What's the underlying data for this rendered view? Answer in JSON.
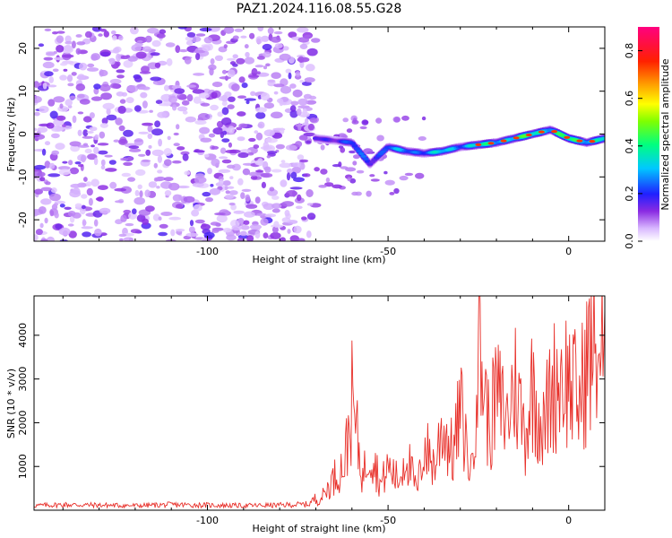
{
  "figure_title": "PAZ1.2024.116.08.55.G28",
  "chart_data": [
    {
      "type": "heatmap",
      "xlabel": "Height of straight line (km)",
      "ylabel": "Frequency (Hz)",
      "xlim": [
        -148,
        10
      ],
      "ylim": [
        -25,
        25
      ],
      "xticks": [
        -100,
        -50,
        0
      ],
      "yticks": [
        -20,
        -10,
        0,
        10,
        20
      ],
      "colorbar": {
        "label": "Normalized spectral amplitude",
        "ticks": [
          0.0,
          0.2,
          0.4,
          0.6,
          0.8
        ],
        "range": [
          0.0,
          0.9
        ],
        "colormap": "rainbow (white-violet-blue-cyan-green-yellow-orange-red-magenta)"
      },
      "ridge": {
        "description": "Dominant frequency track",
        "x": [
          -70,
          -65,
          -60,
          -55,
          -50,
          -45,
          -40,
          -35,
          -30,
          -25,
          -20,
          -15,
          -10,
          -5,
          0,
          5,
          10
        ],
        "y": [
          -1,
          -1.5,
          -2,
          -7,
          -3,
          -4,
          -4.5,
          -4,
          -3,
          -2.5,
          -2,
          -1,
          0,
          1,
          -1,
          -2,
          -1
        ]
      },
      "noise_region_x": [
        -148,
        -70
      ]
    },
    {
      "type": "line",
      "xlabel": "Height of straight line (km)",
      "ylabel": "SNR (10 * v/v)",
      "xlim": [
        -148,
        10
      ],
      "ylim": [
        0,
        4900
      ],
      "xticks": [
        -100,
        -50,
        0
      ],
      "yticks": [
        1000,
        2000,
        3000,
        4000
      ],
      "series": [
        {
          "color": "#e8302a",
          "x": [
            -148,
            -140,
            -130,
            -120,
            -110,
            -100,
            -90,
            -80,
            -72,
            -68,
            -65,
            -62,
            -60,
            -57,
            -55,
            -52,
            -50,
            -47,
            -45,
            -42,
            -40,
            -37,
            -35,
            -32,
            -30,
            -27,
            -25,
            -22,
            -20,
            -17,
            -15,
            -12,
            -10,
            -7,
            -5,
            -2,
            0,
            3,
            5,
            8,
            10
          ],
          "y": [
            100,
            120,
            110,
            100,
            120,
            110,
            100,
            110,
            130,
            400,
            900,
            1300,
            3000,
            900,
            1800,
            700,
            1200,
            800,
            1600,
            500,
            1800,
            1200,
            2400,
            1500,
            2800,
            1000,
            4800,
            2200,
            3200,
            2500,
            3600,
            2100,
            3500,
            2200,
            3300,
            3800,
            3600,
            3000,
            4100,
            4500,
            4200
          ]
        }
      ]
    }
  ],
  "colors": {
    "line": "#e8302a",
    "axis": "#000000"
  }
}
